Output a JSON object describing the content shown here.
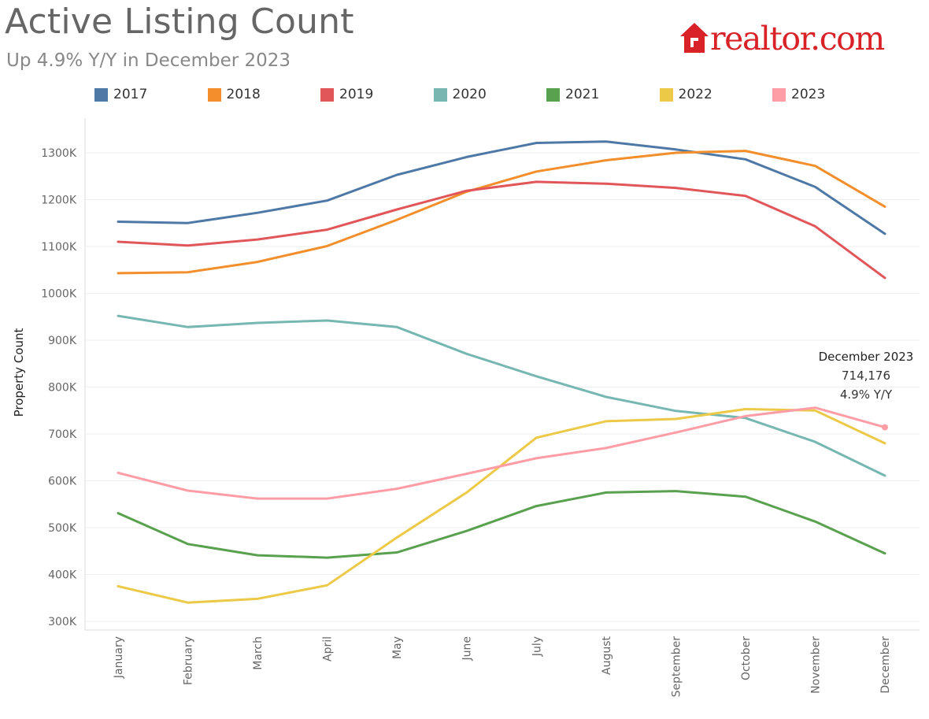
{
  "header": {
    "title": "Active Listing Count",
    "subtitle": "Up 4.9% Y/Y in December 2023"
  },
  "logo": {
    "text_real": "real",
    "text_tor": "tor.com",
    "icon": "house-icon",
    "color": "#d92228"
  },
  "chart_data": {
    "type": "line",
    "title": "Active Listing Count",
    "subtitle": "Up 4.9% Y/Y in December 2023",
    "xlabel": "",
    "ylabel": "Property Count",
    "ylim": [
      290000,
      1370000
    ],
    "yticks": [
      300000,
      400000,
      500000,
      600000,
      700000,
      800000,
      900000,
      1000000,
      1100000,
      1200000,
      1300000
    ],
    "ytick_labels": [
      "300K",
      "400K",
      "500K",
      "600K",
      "700K",
      "800K",
      "900K",
      "1000K",
      "1100K",
      "1200K",
      "1300K"
    ],
    "categories": [
      "January",
      "February",
      "March",
      "April",
      "May",
      "June",
      "July",
      "August",
      "September",
      "October",
      "November",
      "December"
    ],
    "grid": true,
    "legend_position": "top",
    "series": [
      {
        "name": "2017",
        "color": "#4e79a7",
        "values": [
          1153000,
          1150000,
          1172000,
          1198000,
          1253000,
          1291000,
          1321000,
          1324000,
          1307000,
          1286000,
          1227000,
          1127000
        ]
      },
      {
        "name": "2018",
        "color": "#f28e2b",
        "values": [
          1043000,
          1045000,
          1067000,
          1101000,
          1157000,
          1217000,
          1260000,
          1284000,
          1300000,
          1304000,
          1272000,
          1185000
        ]
      },
      {
        "name": "2019",
        "color": "#e15759",
        "values": [
          1110000,
          1102000,
          1115000,
          1136000,
          1179000,
          1219000,
          1238000,
          1234000,
          1225000,
          1208000,
          1143000,
          1033000
        ]
      },
      {
        "name": "2020",
        "color": "#76b7b2",
        "values": [
          952000,
          928000,
          937000,
          942000,
          928000,
          871000,
          823000,
          779000,
          749000,
          734000,
          683000,
          611000
        ]
      },
      {
        "name": "2021",
        "color": "#59a14f",
        "values": [
          531000,
          465000,
          441000,
          436000,
          447000,
          493000,
          546000,
          575000,
          578000,
          566000,
          513000,
          445000
        ]
      },
      {
        "name": "2022",
        "color": "#edc948",
        "values": [
          375000,
          340000,
          348000,
          377000,
          479000,
          575000,
          692000,
          727000,
          732000,
          753000,
          750000,
          680000
        ]
      },
      {
        "name": "2023",
        "color": "#ff9da7",
        "values": [
          617000,
          579000,
          562000,
          562000,
          583000,
          615000,
          648000,
          670000,
          703000,
          738000,
          756000,
          714176
        ]
      }
    ],
    "annotation": {
      "series": "2023",
      "category": "December",
      "title": "December 2023",
      "value_text": "714,176",
      "change_text": "4.9% Y/Y"
    }
  }
}
